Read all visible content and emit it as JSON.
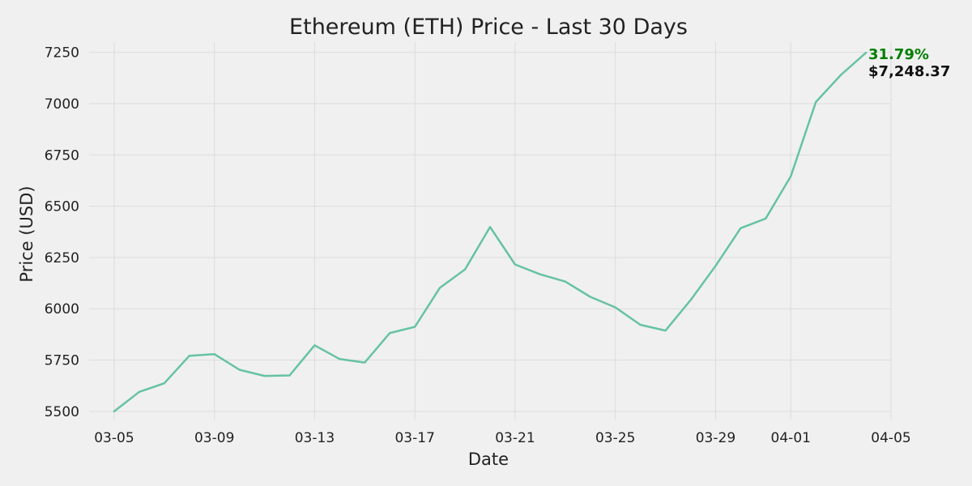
{
  "chart_data": {
    "type": "line",
    "title": "Ethereum (ETH) Price - Last 30 Days",
    "xlabel": "Date",
    "ylabel": "Price (USD)",
    "x_ticks": [
      "03-05",
      "03-09",
      "03-13",
      "03-17",
      "03-21",
      "03-25",
      "03-29",
      "04-01",
      "04-05"
    ],
    "y_ticks": [
      "5500",
      "5750",
      "6000",
      "6250",
      "6500",
      "6750",
      "7000",
      "7250"
    ],
    "ylim": [
      5460,
      7300
    ],
    "xlim": [
      "2025-03-04",
      "2025-04-05"
    ],
    "grid": true,
    "series": [
      {
        "color": "#66c2a5",
        "x": [
          "2025-03-05",
          "2025-03-06",
          "2025-03-07",
          "2025-03-08",
          "2025-03-09",
          "2025-03-10",
          "2025-03-11",
          "2025-03-12",
          "2025-03-13",
          "2025-03-14",
          "2025-03-15",
          "2025-03-16",
          "2025-03-17",
          "2025-03-18",
          "2025-03-19",
          "2025-03-20",
          "2025-03-21",
          "2025-03-22",
          "2025-03-23",
          "2025-03-24",
          "2025-03-25",
          "2025-03-26",
          "2025-03-27",
          "2025-03-28",
          "2025-03-29",
          "2025-03-30",
          "2025-03-31",
          "2025-04-01",
          "2025-04-02",
          "2025-04-03",
          "2025-04-04"
        ],
        "values": [
          5500,
          5595,
          5637,
          5771,
          5779,
          5703,
          5673,
          5675,
          5822,
          5755,
          5738,
          5882,
          5912,
          6103,
          6192,
          6399,
          6216,
          6168,
          6133,
          6058,
          6007,
          5922,
          5894,
          6042,
          6209,
          6393,
          6440,
          6646,
          7008,
          7140,
          7248.37
        ]
      }
    ],
    "annotations": {
      "change_pct": "31.79%",
      "last_price": "$7,248.37",
      "change_color": "#008000"
    }
  }
}
